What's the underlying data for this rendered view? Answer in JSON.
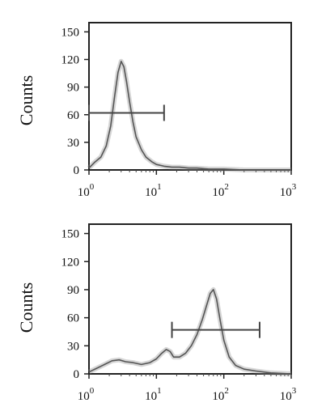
{
  "chart_data": [
    {
      "type": "line",
      "ylabel": "Counts",
      "xlabel": "",
      "x_scale": "log",
      "xlim": [
        1,
        1000
      ],
      "ylim": [
        0,
        160
      ],
      "x_ticks": [
        {
          "value": 1,
          "base": "10",
          "exp": "0"
        },
        {
          "value": 10,
          "base": "10",
          "exp": "1"
        },
        {
          "value": 100,
          "base": "10",
          "exp": "2"
        },
        {
          "value": 1000,
          "base": "10",
          "exp": "3"
        }
      ],
      "y_ticks": [
        "0",
        "30",
        "60",
        "90",
        "120",
        "150"
      ],
      "series": [
        {
          "x": [
            1.0,
            1.2,
            1.5,
            1.8,
            2.1,
            2.4,
            2.7,
            3.0,
            3.3,
            3.6,
            4.0,
            4.5,
            5.0,
            6.0,
            7.0,
            8.5,
            10.0,
            13.0,
            17.0,
            22.0,
            30.0,
            40.0,
            60.0,
            100.0,
            200.0,
            500.0,
            1000.0
          ],
          "y": [
            2,
            8,
            14,
            26,
            48,
            80,
            106,
            118,
            112,
            96,
            74,
            52,
            36,
            22,
            14,
            9,
            6,
            4,
            3,
            3,
            2,
            2,
            1,
            1,
            0,
            0,
            0
          ]
        }
      ],
      "gate": {
        "x_start": 1.0,
        "x_end": 13.0,
        "y": 62
      }
    },
    {
      "type": "line",
      "ylabel": "Counts",
      "xlabel": "",
      "x_scale": "log",
      "xlim": [
        1,
        1000
      ],
      "ylim": [
        0,
        160
      ],
      "x_ticks": [
        {
          "value": 1,
          "base": "10",
          "exp": "0"
        },
        {
          "value": 10,
          "base": "10",
          "exp": "1"
        },
        {
          "value": 100,
          "base": "10",
          "exp": "2"
        },
        {
          "value": 1000,
          "base": "10",
          "exp": "3"
        }
      ],
      "y_ticks": [
        "0",
        "30",
        "60",
        "90",
        "120",
        "150"
      ],
      "series": [
        {
          "x": [
            1.0,
            1.3,
            1.7,
            2.2,
            2.8,
            3.5,
            4.5,
            6.0,
            8.0,
            10.0,
            12.0,
            14.0,
            16.0,
            18.0,
            22.0,
            27.0,
            33.0,
            40.0,
            48.0,
            56.0,
            63.0,
            70.0,
            78.0,
            88.0,
            100.0,
            120.0,
            150.0,
            200.0,
            300.0,
            500.0,
            1000.0
          ],
          "y": [
            2,
            6,
            10,
            14,
            15,
            13,
            12,
            10,
            12,
            16,
            22,
            26,
            24,
            18,
            18,
            22,
            30,
            42,
            58,
            74,
            86,
            90,
            80,
            58,
            36,
            18,
            9,
            5,
            3,
            1,
            0
          ]
        }
      ],
      "gate": {
        "x_start": 17.0,
        "x_end": 340.0,
        "y": 47
      }
    }
  ]
}
